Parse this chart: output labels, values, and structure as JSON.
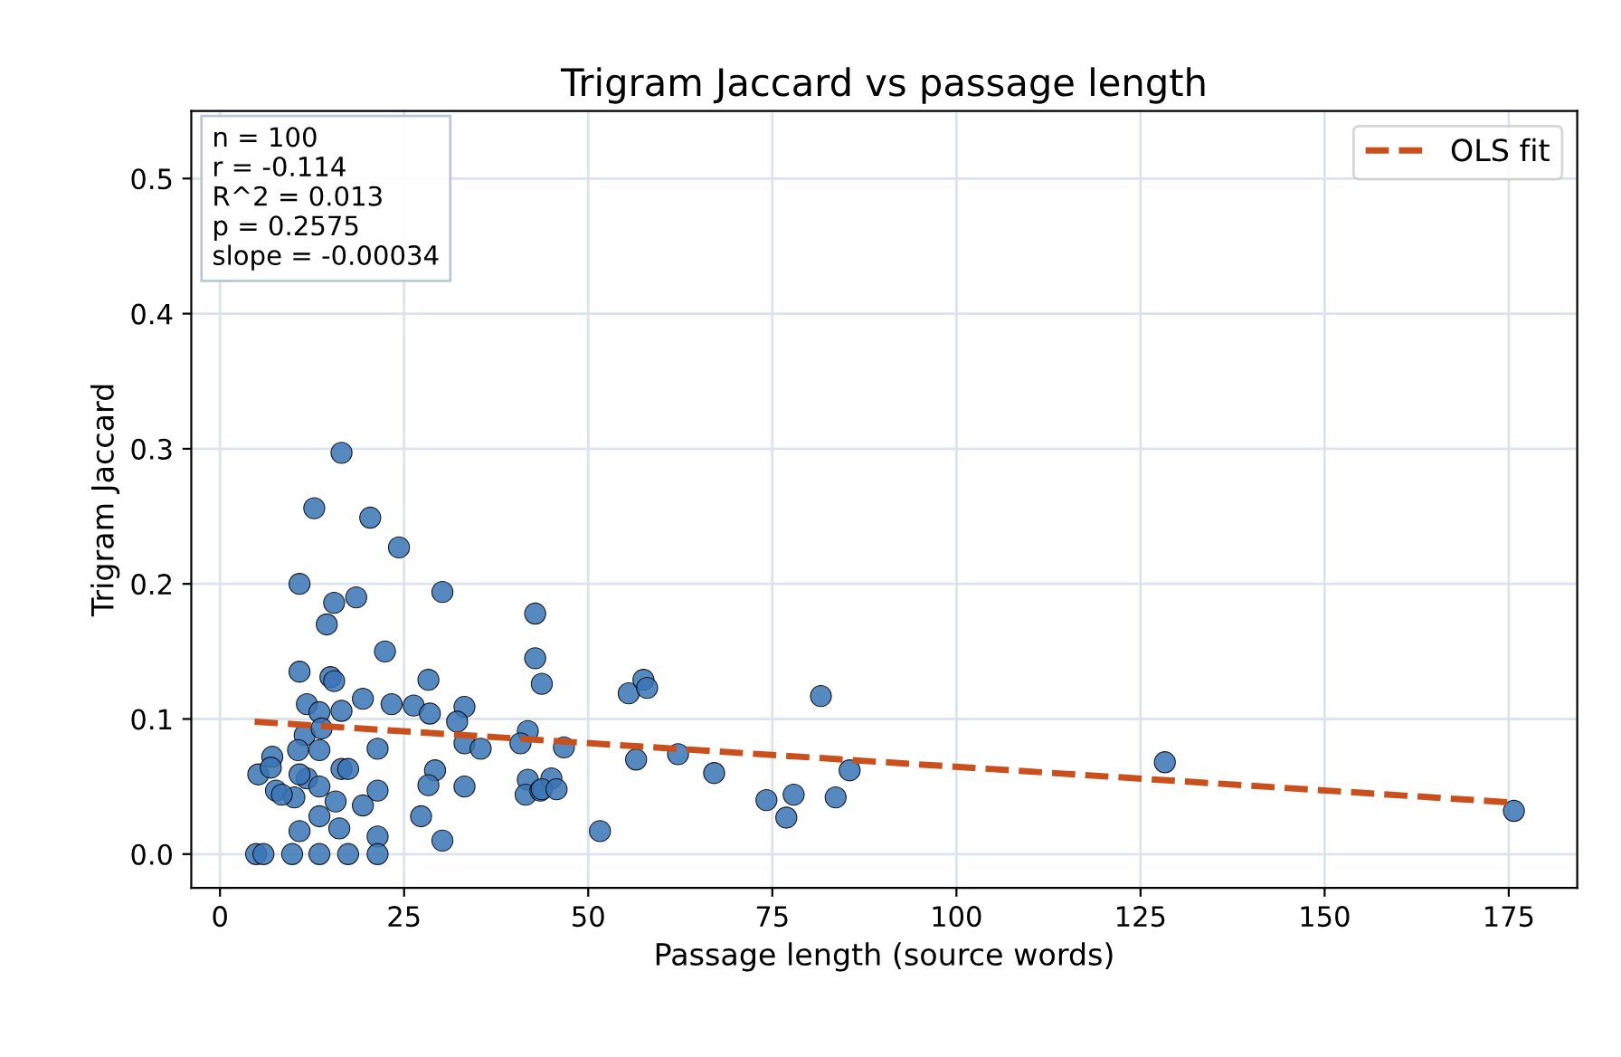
{
  "chart_data": {
    "type": "scatter",
    "title": "Trigram Jaccard vs passage length",
    "xlabel": "Passage length (source words)",
    "ylabel": "Trigram Jaccard",
    "xlim": [
      -3.9,
      184.3
    ],
    "ylim": [
      -0.025,
      0.55
    ],
    "xticks": [
      0,
      25,
      50,
      75,
      100,
      125,
      150,
      175
    ],
    "yticks": [
      {
        "value": 0,
        "label": "0.0"
      },
      {
        "value": 0.1,
        "label": "0.1"
      },
      {
        "value": 0.2,
        "label": "0.2"
      },
      {
        "value": 0.3,
        "label": "0.3"
      },
      {
        "value": 0.4,
        "label": "0.4"
      },
      {
        "value": 0.5,
        "label": "0.5"
      }
    ],
    "grid": true,
    "legend": "top right",
    "marker": "circle",
    "annotations": [
      "n = 100\nr = -0.114\nR^2 = 0.013\np = 0.2575\nslope = -0.00034"
    ],
    "series": [
      {
        "color": "#3a74b6",
        "x": [
          16.5,
          12.8,
          20.4,
          24.3,
          10.8,
          15.5,
          18.5,
          30.2,
          14.5,
          42.8,
          22.4,
          10.8,
          15.0,
          15.5,
          28.3,
          42.8,
          43.7,
          11.8,
          13.5,
          16.5,
          19.4,
          23.3,
          26.3,
          28.5,
          33.2,
          32.2,
          11.5,
          13.8,
          33.2,
          35.4,
          41.8,
          40.8,
          7.1,
          10.6,
          13.5,
          21.4,
          5.2,
          6.9,
          7.6,
          10.1,
          11.8,
          13.5,
          15.7,
          16.5,
          17.4,
          21.4,
          19.4,
          29.2,
          28.3,
          33.2,
          41.8,
          41.5,
          43.5,
          10.8,
          13.5,
          16.2,
          21.4,
          27.3,
          30.2,
          4.9,
          5.9,
          9.8,
          13.5,
          17.4,
          21.4,
          8.4,
          10.8,
          55.5,
          57.5,
          58.0,
          81.6,
          46.7,
          56.5,
          62.2,
          67.1,
          74.2,
          77.9,
          76.9,
          83.6,
          85.5,
          51.6,
          45.0,
          43.7,
          45.7,
          128.3,
          175.7
        ],
        "values": [
          0.297,
          0.256,
          0.249,
          0.227,
          0.2,
          0.186,
          0.19,
          0.194,
          0.17,
          0.178,
          0.15,
          0.135,
          0.131,
          0.128,
          0.129,
          0.145,
          0.126,
          0.111,
          0.105,
          0.106,
          0.115,
          0.111,
          0.11,
          0.104,
          0.109,
          0.098,
          0.088,
          0.093,
          0.082,
          0.078,
          0.091,
          0.082,
          0.072,
          0.077,
          0.077,
          0.078,
          0.059,
          0.064,
          0.047,
          0.042,
          0.056,
          0.05,
          0.039,
          0.063,
          0.063,
          0.047,
          0.036,
          0.062,
          0.051,
          0.05,
          0.055,
          0.044,
          0.047,
          0.017,
          0.028,
          0.019,
          0.013,
          0.028,
          0.01,
          0,
          0,
          0,
          0,
          0,
          0,
          0.044,
          0.059,
          0.119,
          0.129,
          0.123,
          0.117,
          0.079,
          0.07,
          0.074,
          0.06,
          0.04,
          0.044,
          0.027,
          0.042,
          0.062,
          0.017,
          0.056,
          0.048,
          0.048,
          0.068,
          0.032
        ]
      },
      {
        "type": "line",
        "name": "OLS fit",
        "color": "#c9501c",
        "line_style": "dashed",
        "marker": "none",
        "x": [
          4.7,
          176
        ],
        "values": [
          0.098,
          0.038
        ]
      }
    ]
  }
}
